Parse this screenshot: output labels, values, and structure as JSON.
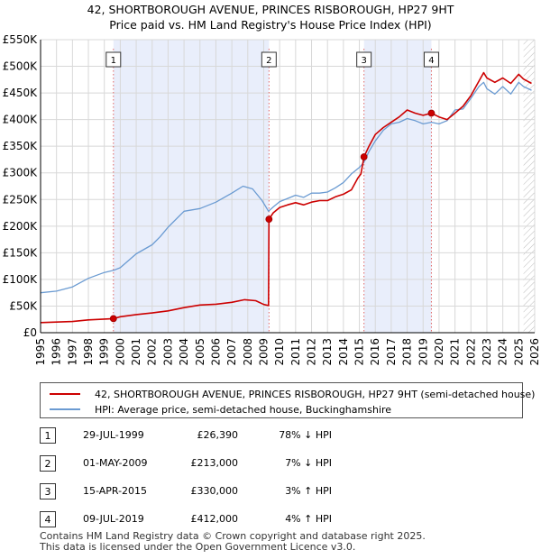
{
  "title": {
    "line1": "42, SHORTBOROUGH AVENUE, PRINCES RISBOROUGH, HP27 9HT",
    "line2": "Price paid vs. HM Land Registry's House Price Index (HPI)"
  },
  "colors": {
    "property": "#cc0000",
    "hpi": "#6b9bd2",
    "shade": "#e9eefb",
    "hatch": "#bbbbbb",
    "marker_line": "#e06666"
  },
  "chart_data": {
    "type": "line",
    "title": "Price paid vs. HM Land Registry's House Price Index (HPI)",
    "xlabel": "",
    "ylabel": "",
    "xlim": [
      1995,
      2026
    ],
    "ylim": [
      0,
      550000
    ],
    "y_ticks": [
      {
        "value": 0,
        "label": "£0"
      },
      {
        "value": 50000,
        "label": "£50K"
      },
      {
        "value": 100000,
        "label": "£100K"
      },
      {
        "value": 150000,
        "label": "£150K"
      },
      {
        "value": 200000,
        "label": "£200K"
      },
      {
        "value": 250000,
        "label": "£250K"
      },
      {
        "value": 300000,
        "label": "£300K"
      },
      {
        "value": 350000,
        "label": "£350K"
      },
      {
        "value": 400000,
        "label": "£400K"
      },
      {
        "value": 450000,
        "label": "£450K"
      },
      {
        "value": 500000,
        "label": "£500K"
      },
      {
        "value": 550000,
        "label": "£550K"
      }
    ],
    "x_ticks": [
      "1995",
      "1996",
      "1997",
      "1998",
      "1999",
      "2000",
      "2001",
      "2002",
      "2003",
      "2004",
      "2005",
      "2006",
      "2007",
      "2008",
      "2009",
      "2010",
      "2011",
      "2012",
      "2013",
      "2014",
      "2015",
      "2016",
      "2017",
      "2018",
      "2019",
      "2020",
      "2021",
      "2022",
      "2023",
      "2024",
      "2025",
      "2026"
    ],
    "grid": true,
    "forecast_start": 2025.3,
    "shaded_periods": [
      [
        1999.57,
        2009.33
      ],
      [
        2015.29,
        2019.52
      ]
    ],
    "series": [
      {
        "name": "42, SHORTBOROUGH AVENUE, PRINCES RISBOROUGH, HP27 9HT (semi-detached house)",
        "key": "property",
        "x": [
          1995.0,
          1996.0,
          1997.0,
          1998.0,
          1999.0,
          1999.57,
          2000.0,
          2001.0,
          2002.0,
          2003.0,
          2004.0,
          2005.0,
          2006.0,
          2007.0,
          2007.8,
          2008.5,
          2009.0,
          2009.3,
          2009.33,
          2009.6,
          2010.0,
          2010.5,
          2011.0,
          2011.5,
          2012.0,
          2012.5,
          2013.0,
          2013.5,
          2014.0,
          2014.5,
          2014.9,
          2015.1,
          2015.29,
          2015.6,
          2016.0,
          2016.5,
          2017.0,
          2017.5,
          2018.0,
          2018.5,
          2019.0,
          2019.52,
          2020.0,
          2020.5,
          2021.0,
          2021.5,
          2022.0,
          2022.5,
          2022.8,
          2023.0,
          2023.5,
          2024.0,
          2024.5,
          2025.0,
          2025.3,
          2025.8
        ],
        "y": [
          19000,
          20000,
          21000,
          24000,
          25500,
          26390,
          30000,
          34000,
          37000,
          41000,
          47000,
          52000,
          53500,
          57000,
          62000,
          60000,
          53000,
          51000,
          213000,
          225000,
          235000,
          240000,
          244000,
          240000,
          245000,
          248000,
          248000,
          255000,
          260000,
          268000,
          290000,
          298000,
          330000,
          350000,
          372000,
          385000,
          395000,
          405000,
          418000,
          412000,
          408000,
          412000,
          405000,
          400000,
          412000,
          425000,
          445000,
          472000,
          488000,
          478000,
          470000,
          478000,
          468000,
          485000,
          476000,
          468000
        ]
      },
      {
        "name": "HPI: Average price, semi-detached house, Buckinghamshire",
        "key": "hpi",
        "x": [
          1995.0,
          1996.0,
          1997.0,
          1998.0,
          1999.0,
          1999.57,
          2000.0,
          2001.0,
          2002.0,
          2002.5,
          2003.0,
          2004.0,
          2005.0,
          2006.0,
          2007.0,
          2007.7,
          2008.3,
          2008.9,
          2009.3,
          2009.6,
          2010.0,
          2010.5,
          2011.0,
          2011.5,
          2012.0,
          2012.5,
          2013.0,
          2013.5,
          2014.0,
          2014.5,
          2015.0,
          2015.29,
          2015.6,
          2016.0,
          2016.5,
          2017.0,
          2017.5,
          2018.0,
          2018.5,
          2019.0,
          2019.52,
          2020.0,
          2020.5,
          2021.0,
          2021.5,
          2022.0,
          2022.5,
          2022.8,
          2023.0,
          2023.5,
          2024.0,
          2024.5,
          2025.0,
          2025.3,
          2025.8
        ],
        "y": [
          75000,
          78000,
          86000,
          102000,
          113000,
          117000,
          122000,
          148000,
          165000,
          180000,
          198000,
          228000,
          233000,
          245000,
          262000,
          275000,
          270000,
          248000,
          228000,
          236000,
          246000,
          252000,
          258000,
          254000,
          262000,
          262000,
          264000,
          272000,
          282000,
          298000,
          310000,
          320000,
          340000,
          360000,
          380000,
          392000,
          395000,
          402000,
          398000,
          392000,
          395000,
          392000,
          398000,
          418000,
          420000,
          440000,
          462000,
          470000,
          458000,
          448000,
          462000,
          448000,
          470000,
          462000,
          455000
        ]
      }
    ],
    "annotations": [
      {
        "label": "1",
        "x": 1999.57,
        "y": 26390
      },
      {
        "label": "2",
        "x": 2009.33,
        "y": 213000
      },
      {
        "label": "3",
        "x": 2015.29,
        "y": 330000
      },
      {
        "label": "4",
        "x": 2019.52,
        "y": 412000
      }
    ]
  },
  "legend": {
    "property": "42, SHORTBOROUGH AVENUE, PRINCES RISBOROUGH, HP27 9HT (semi-detached house)",
    "hpi": "HPI: Average price, semi-detached house, Buckinghamshire"
  },
  "sales": [
    {
      "num": "1",
      "date": "29-JUL-1999",
      "price": "£26,390",
      "hpi": "78% ↓ HPI"
    },
    {
      "num": "2",
      "date": "01-MAY-2009",
      "price": "£213,000",
      "hpi": "7% ↓ HPI"
    },
    {
      "num": "3",
      "date": "15-APR-2015",
      "price": "£330,000",
      "hpi": "3% ↑ HPI"
    },
    {
      "num": "4",
      "date": "09-JUL-2019",
      "price": "£412,000",
      "hpi": "4% ↑ HPI"
    }
  ],
  "footer": {
    "line1": "Contains HM Land Registry data © Crown copyright and database right 2025.",
    "line2": "This data is licensed under the Open Government Licence v3.0."
  }
}
